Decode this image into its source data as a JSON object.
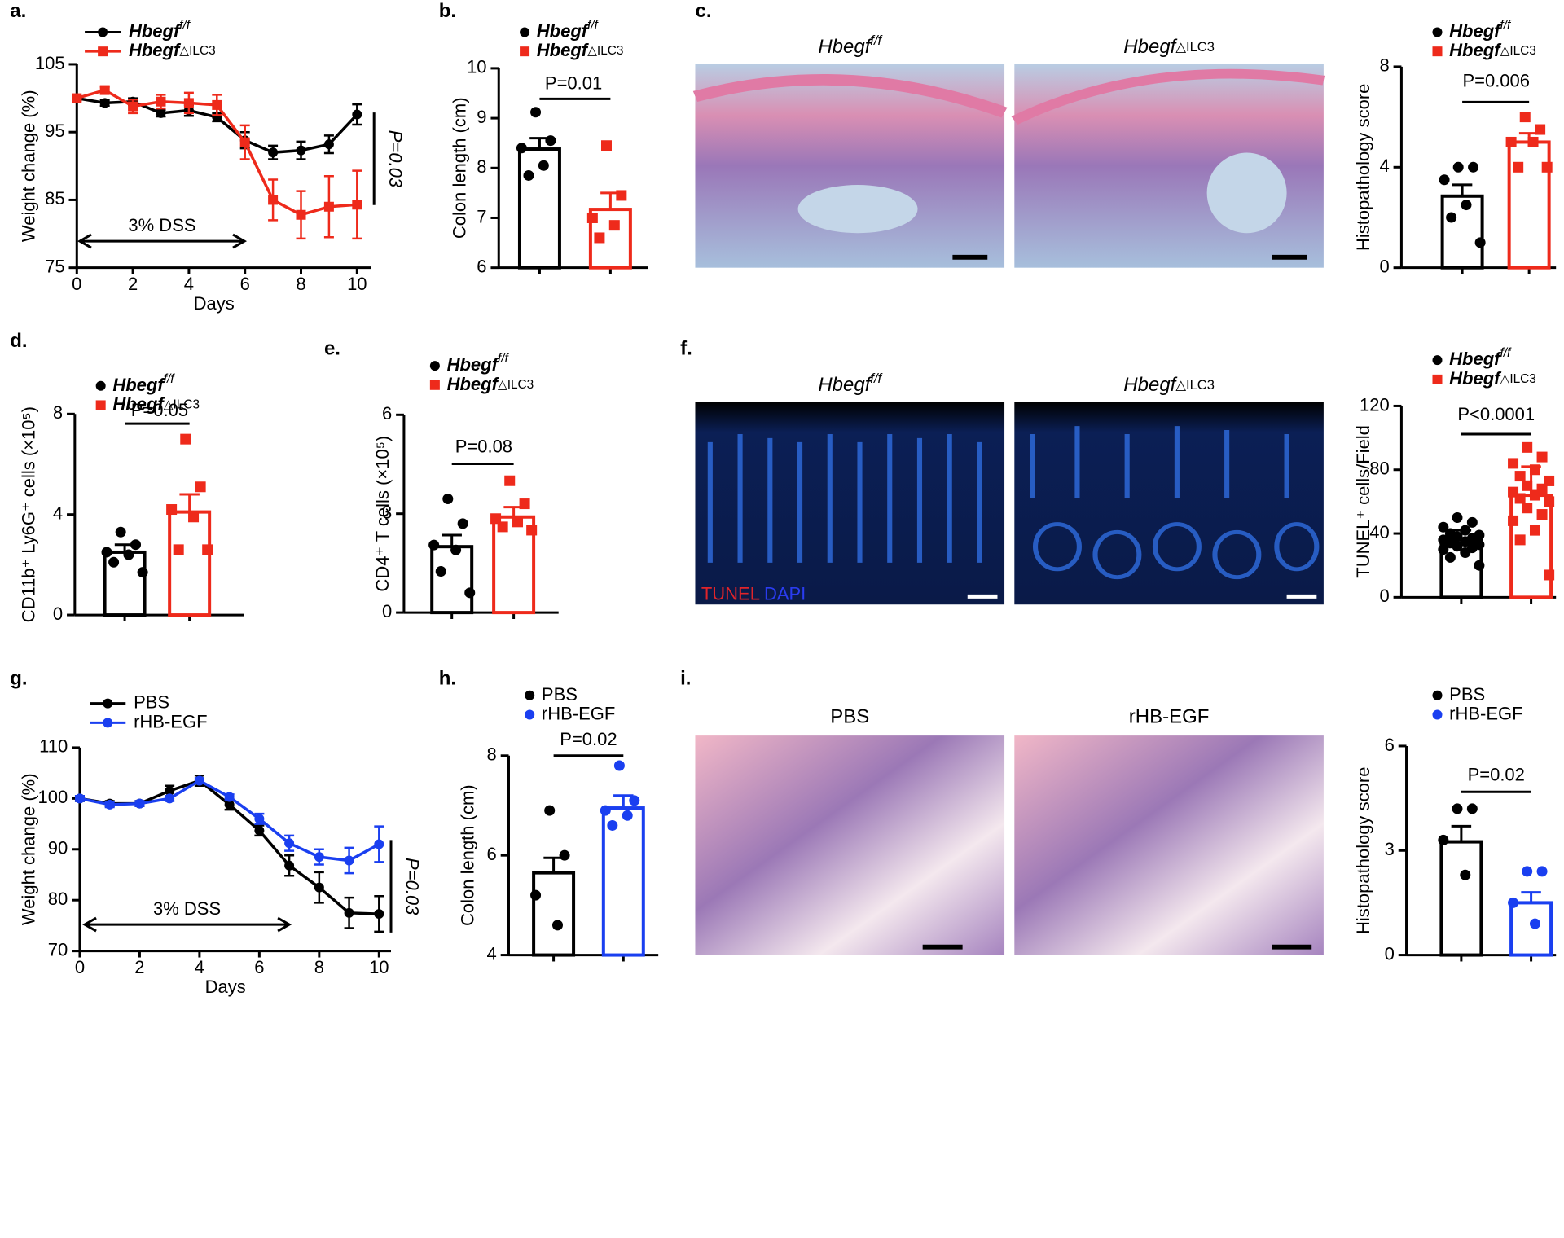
{
  "chart_data": [
    {
      "type": "line",
      "panel": "a.",
      "xlabel": "Days",
      "ylabel": "Weight change (%)",
      "x": [
        0,
        1,
        2,
        3,
        4,
        5,
        6,
        7,
        8,
        9,
        10
      ],
      "xlim": [
        0,
        10.5
      ],
      "xticks": [
        0,
        2,
        4,
        6,
        8,
        10
      ],
      "ylim": [
        75,
        105
      ],
      "yticks": [
        75,
        85,
        95,
        105
      ],
      "series": [
        {
          "name": "Hbegf",
          "superscript": "f/f",
          "color": "#000000",
          "marker": "circle",
          "values": [
            100,
            99.3,
            99.5,
            97.8,
            98.2,
            97.2,
            93.8,
            92.0,
            92.3,
            93.2,
            97.6
          ],
          "errors": [
            0.3,
            0.4,
            0.5,
            0.5,
            0.8,
            0.6,
            1.2,
            1.0,
            1.3,
            1.3,
            1.5
          ]
        },
        {
          "name": "Hbegf",
          "superscript": "△ILC3",
          "color": "#ee2a1b",
          "marker": "square",
          "values": [
            100,
            101.2,
            98.8,
            99.5,
            99.3,
            99.0,
            93.5,
            85.0,
            82.8,
            84.0,
            84.3
          ],
          "errors": [
            0.3,
            0.5,
            1.0,
            1.0,
            1.5,
            1.5,
            2.5,
            3.0,
            3.5,
            4.5,
            5.0
          ]
        }
      ],
      "annotations": [
        "3% DSS",
        "P=0.03"
      ]
    },
    {
      "type": "dot-bar",
      "panel": "b.",
      "ylabel": "Colon length (cm)",
      "ylim": [
        6,
        10
      ],
      "yticks": [
        6,
        7,
        8,
        9,
        10
      ],
      "p_value": "P=0.01",
      "series": [
        {
          "name": "Hbegf",
          "superscript": "f/f",
          "color": "#000000",
          "marker": "circle",
          "mean": 8.38,
          "sem": 0.22,
          "points": [
            9.12,
            8.55,
            8.4,
            8.05,
            7.85
          ]
        },
        {
          "name": "Hbegf",
          "superscript": "△ILC3",
          "color": "#ee2a1b",
          "marker": "square",
          "mean": 7.17,
          "sem": 0.33,
          "points": [
            8.45,
            7.45,
            7.0,
            6.85,
            6.6
          ]
        }
      ]
    },
    {
      "type": "dot-bar",
      "ylabel": "Histopathology score",
      "ylim": [
        0,
        8
      ],
      "yticks": [
        0,
        4,
        8
      ],
      "p_value": "P=0.006",
      "series": [
        {
          "name": "Hbegf",
          "superscript": "f/f",
          "color": "#000000",
          "marker": "circle",
          "mean": 2.85,
          "sem": 0.45,
          "points": [
            4,
            4,
            3.5,
            2.5,
            2,
            1
          ]
        },
        {
          "name": "Hbegf",
          "superscript": "△ILC3",
          "color": "#ee2a1b",
          "marker": "square",
          "mean": 5.0,
          "sem": 0.35,
          "points": [
            6,
            5.5,
            5,
            5,
            4,
            4
          ]
        }
      ]
    },
    {
      "type": "dot-bar",
      "panel": "d.",
      "ylabel": "CD11b⁺ Ly6G⁺ cells (×10⁵)",
      "ylim": [
        0,
        8
      ],
      "yticks": [
        0,
        4,
        8
      ],
      "p_value": "P=0.05",
      "series": [
        {
          "name": "Hbegf",
          "superscript": "f/f",
          "color": "#000000",
          "marker": "circle",
          "mean": 2.5,
          "sem": 0.3,
          "points": [
            3.3,
            2.8,
            2.5,
            2.4,
            2.1,
            1.7
          ]
        },
        {
          "name": "Hbegf",
          "superscript": "△ILC3",
          "color": "#ee2a1b",
          "marker": "square",
          "mean": 4.1,
          "sem": 0.7,
          "points": [
            7.0,
            5.1,
            4.2,
            3.9,
            2.6,
            2.6
          ]
        }
      ]
    },
    {
      "type": "dot-bar",
      "panel": "e.",
      "ylabel": "CD4⁺ T cells (×10⁵)",
      "ylim": [
        0,
        6
      ],
      "yticks": [
        0,
        3,
        6
      ],
      "p_value": "P=0.08",
      "series": [
        {
          "name": "Hbegf",
          "superscript": "f/f",
          "color": "#000000",
          "marker": "circle",
          "mean": 2.0,
          "sem": 0.35,
          "points": [
            3.45,
            2.7,
            2.05,
            1.9,
            1.25,
            0.6
          ]
        },
        {
          "name": "Hbegf",
          "superscript": "△ILC3",
          "color": "#ee2a1b",
          "marker": "square",
          "mean": 2.9,
          "sem": 0.3,
          "points": [
            4.0,
            3.3,
            2.85,
            2.75,
            2.6,
            2.5
          ]
        }
      ]
    },
    {
      "type": "dot-bar",
      "ylabel": "TUNEL⁺ cells/Field",
      "ylim": [
        0,
        120
      ],
      "yticks": [
        0,
        40,
        80,
        120
      ],
      "p_value": "P<0.0001",
      "series": [
        {
          "name": "Hbegf",
          "superscript": "f/f",
          "color": "#000000",
          "marker": "circle",
          "mean": 36,
          "sem": 6,
          "points": [
            50,
            47,
            44,
            42,
            40,
            39,
            38,
            37,
            36,
            35,
            34,
            33,
            32,
            31,
            30,
            28,
            25,
            20
          ]
        },
        {
          "name": "Hbegf",
          "superscript": "△ILC3",
          "color": "#ee2a1b",
          "marker": "square",
          "mean": 64,
          "sem": 18,
          "points": [
            94,
            88,
            84,
            80,
            76,
            73,
            70,
            68,
            66,
            64,
            62,
            60,
            56,
            52,
            48,
            42,
            36,
            14
          ]
        }
      ]
    },
    {
      "type": "line",
      "panel": "g.",
      "xlabel": "Days",
      "ylabel": "Weight change (%)",
      "x": [
        0,
        1,
        2,
        3,
        4,
        5,
        6,
        7,
        8,
        9,
        10
      ],
      "xlim": [
        0,
        10.4
      ],
      "xticks": [
        0,
        2,
        4,
        6,
        8,
        10
      ],
      "ylim": [
        70,
        110
      ],
      "yticks": [
        70,
        80,
        90,
        100,
        110
      ],
      "series": [
        {
          "name": "PBS",
          "color": "#000000",
          "marker": "circle",
          "values": [
            100,
            99,
            99,
            101.5,
            103.5,
            98.8,
            93.7,
            86.8,
            82.5,
            77.5,
            77.3
          ],
          "errors": [
            0.5,
            0.5,
            0.5,
            1,
            1,
            1,
            1,
            2,
            3,
            3,
            3.5
          ]
        },
        {
          "name": "rHB-EGF",
          "color": "#1a3ff0",
          "marker": "circle",
          "values": [
            100,
            98.8,
            99,
            100,
            103.5,
            100.3,
            96,
            91.2,
            88.5,
            87.8,
            91
          ],
          "errors": [
            0.5,
            0.5,
            0.5,
            0.5,
            0.5,
            0.5,
            1,
            1.5,
            1.5,
            2.5,
            3.5
          ]
        }
      ],
      "annotations": [
        "3% DSS",
        "P=0.03"
      ]
    },
    {
      "type": "dot-bar",
      "panel": "h.",
      "ylabel": "Colon length (cm)",
      "ylim": [
        4,
        8
      ],
      "yticks": [
        4,
        6,
        8
      ],
      "p_value": "P=0.02",
      "series": [
        {
          "name": "PBS",
          "color": "#000000",
          "marker": "circle",
          "mean": 5.65,
          "sem": 0.3,
          "points": [
            6.9,
            6.0,
            5.2,
            4.6
          ]
        },
        {
          "name": "rHB-EGF",
          "color": "#1a3ff0",
          "marker": "circle",
          "mean": 6.95,
          "sem": 0.25,
          "points": [
            7.8,
            7.1,
            6.9,
            6.8,
            6.6
          ]
        }
      ]
    },
    {
      "type": "dot-bar",
      "ylabel": "Histopathology score",
      "ylim": [
        0,
        6
      ],
      "yticks": [
        0,
        3,
        6
      ],
      "p_value": "P=0.02",
      "series": [
        {
          "name": "PBS",
          "color": "#000000",
          "marker": "circle",
          "mean": 3.25,
          "sem": 0.45,
          "points": [
            4.2,
            4.2,
            3.3,
            2.3
          ]
        },
        {
          "name": "rHB-EGF",
          "color": "#1a3ff0",
          "marker": "circle",
          "mean": 1.5,
          "sem": 0.3,
          "points": [
            2.4,
            2.4,
            1.5,
            0.9
          ]
        }
      ]
    }
  ],
  "micrographs": [
    {
      "panel": "c.",
      "images": [
        {
          "title": "Hbegf",
          "superscript": "f/f"
        },
        {
          "title": "Hbegf",
          "superscript": "△ILC3"
        }
      ]
    },
    {
      "panel": "f.",
      "images": [
        {
          "title": "Hbegf",
          "superscript": "f/f"
        },
        {
          "title": "Hbegf",
          "superscript": "△ILC3"
        }
      ],
      "stain": [
        "TUNEL",
        "DAPI"
      ]
    },
    {
      "panel": "i.",
      "images": [
        {
          "title": "PBS"
        },
        {
          "title": "rHB-EGF"
        }
      ]
    }
  ]
}
